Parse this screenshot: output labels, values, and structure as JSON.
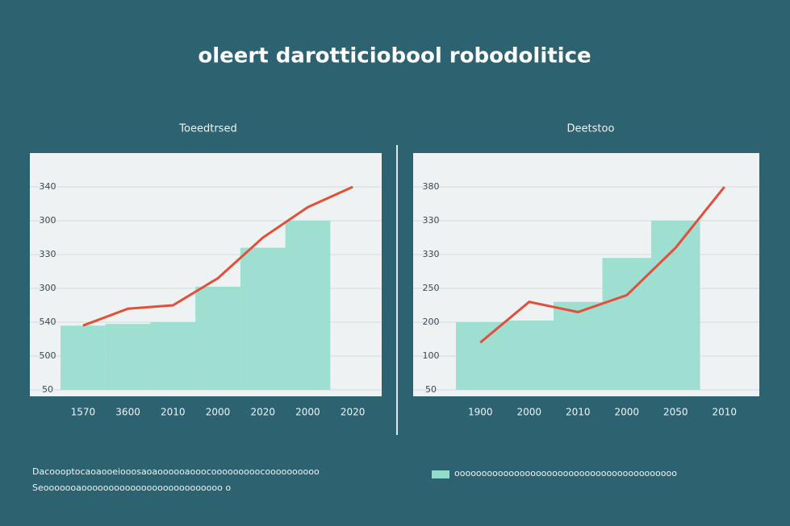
{
  "title": "oleert darotticiobool robodolitice",
  "chart_data": [
    {
      "type": "bar",
      "subtitle": "Toeedtrsed",
      "categories": [
        "1570",
        "3600",
        "2010",
        "2000",
        "2020",
        "2000",
        "2020"
      ],
      "series": [
        {
          "type": "bar",
          "color": "#8fdccb",
          "values": [
            1.9,
            1.95,
            2.0,
            3.05,
            4.2,
            5.0,
            null
          ]
        },
        {
          "type": "line",
          "color": "#e0503a",
          "values": [
            1.9,
            2.4,
            2.5,
            3.3,
            4.5,
            5.4,
            6.0
          ]
        }
      ],
      "ylim": [
        0,
        7
      ],
      "yticks": [
        {
          "value": 0,
          "label": "50"
        },
        {
          "value": 1,
          "label": "500"
        },
        {
          "value": 2,
          "label": "540"
        },
        {
          "value": 3,
          "label": "300"
        },
        {
          "value": 4,
          "label": "330"
        },
        {
          "value": 5,
          "label": "300"
        },
        {
          "value": 6,
          "label": "340"
        }
      ],
      "grid": true
    },
    {
      "type": "bar",
      "subtitle": "Deetstoo",
      "categories": [
        "1900",
        "2000",
        "2010",
        "2000",
        "2050",
        "2010"
      ],
      "series": [
        {
          "type": "bar",
          "color": "#8fdccb",
          "values": [
            2.0,
            2.05,
            2.6,
            3.9,
            5.0,
            null
          ]
        },
        {
          "type": "line",
          "color": "#e0503a",
          "values": [
            1.4,
            2.6,
            2.3,
            2.8,
            4.2,
            6.0
          ]
        }
      ],
      "ylim": [
        0,
        7
      ],
      "yticks": [
        {
          "value": 0,
          "label": "50"
        },
        {
          "value": 1,
          "label": "100"
        },
        {
          "value": 2,
          "label": "200"
        },
        {
          "value": 3,
          "label": "250"
        },
        {
          "value": 4,
          "label": "330"
        },
        {
          "value": 5,
          "label": "330"
        },
        {
          "value": 6,
          "label": "380"
        }
      ],
      "grid": true
    }
  ],
  "footer": {
    "note_line1": "Dacoooptocaoaooeiooosaoaoooooaooocooooooooocoooooooooo",
    "note_line2": "Seooooooaoooooooooooooooooooooooooo o",
    "legend_label": "ooooooooooooooooooooooooooooooooooooooooo"
  }
}
